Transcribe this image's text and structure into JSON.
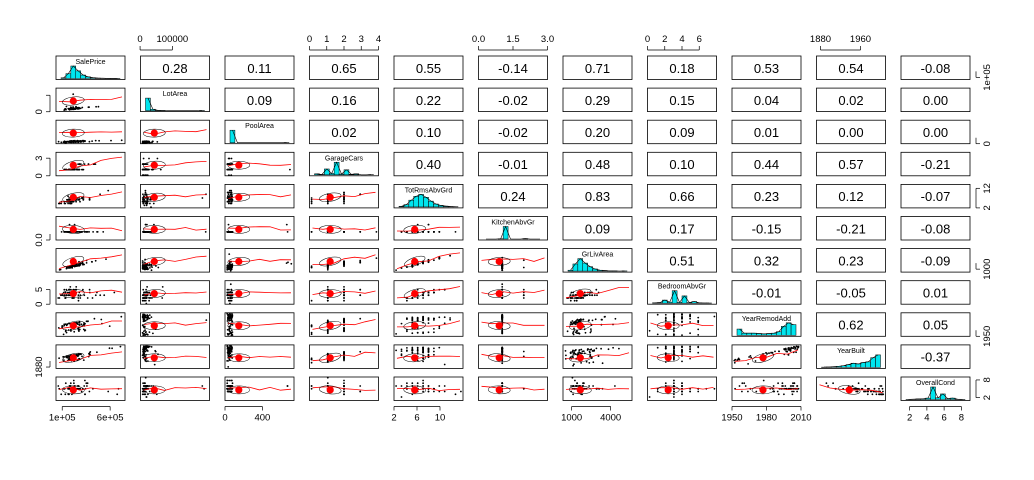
{
  "chart_data": {
    "type": "pairs-panels",
    "title": "",
    "variables": [
      "SalePrice",
      "LotArea",
      "PoolArea",
      "GarageCars",
      "TotRmsAbvGrd",
      "KitchenAbvGr",
      "GrLivArea",
      "BedroomAbvGr",
      "YearRemodAdd",
      "YearBuilt",
      "OverallCond"
    ],
    "correlations": [
      [
        null,
        0.28,
        0.11,
        0.65,
        0.55,
        -0.14,
        0.71,
        0.18,
        0.53,
        0.54,
        -0.08
      ],
      [
        null,
        null,
        0.09,
        0.16,
        0.22,
        -0.02,
        0.29,
        0.15,
        0.04,
        0.02,
        0.0
      ],
      [
        null,
        null,
        null,
        0.02,
        0.1,
        -0.02,
        0.2,
        0.09,
        0.01,
        0.0,
        0.0
      ],
      [
        null,
        null,
        null,
        null,
        0.4,
        -0.01,
        0.48,
        0.1,
        0.44,
        0.57,
        -0.21
      ],
      [
        null,
        null,
        null,
        null,
        null,
        0.24,
        0.83,
        0.66,
        0.23,
        0.12,
        -0.07
      ],
      [
        null,
        null,
        null,
        null,
        null,
        null,
        0.09,
        0.17,
        -0.15,
        -0.21,
        -0.08
      ],
      [
        null,
        null,
        null,
        null,
        null,
        null,
        null,
        0.51,
        0.32,
        0.23,
        -0.09
      ],
      [
        null,
        null,
        null,
        null,
        null,
        null,
        null,
        null,
        -0.01,
        -0.05,
        0.01
      ],
      [
        null,
        null,
        null,
        null,
        null,
        null,
        null,
        null,
        null,
        0.62,
        0.05
      ],
      [
        null,
        null,
        null,
        null,
        null,
        null,
        null,
        null,
        null,
        null,
        -0.37
      ],
      [
        null,
        null,
        null,
        null,
        null,
        null,
        null,
        null,
        null,
        null,
        null
      ]
    ],
    "corr_text": [
      [
        "",
        "0.28",
        "0.11",
        "0.65",
        "0.55",
        "-0.14",
        "0.71",
        "0.18",
        "0.53",
        "0.54",
        "-0.08"
      ],
      [
        "",
        "",
        "0.09",
        "0.16",
        "0.22",
        "-0.02",
        "0.29",
        "0.15",
        "0.04",
        "0.02",
        "0.00"
      ],
      [
        "",
        "",
        "",
        "0.02",
        "0.10",
        "-0.02",
        "0.20",
        "0.09",
        "0.01",
        "0.00",
        "0.00"
      ],
      [
        "",
        "",
        "",
        "",
        "0.40",
        "-0.01",
        "0.48",
        "0.10",
        "0.44",
        "0.57",
        "-0.21"
      ],
      [
        "",
        "",
        "",
        "",
        "",
        "0.24",
        "0.83",
        "0.66",
        "0.23",
        "0.12",
        "-0.07"
      ],
      [
        "",
        "",
        "",
        "",
        "",
        "",
        "0.09",
        "0.17",
        "-0.15",
        "-0.21",
        "-0.08"
      ],
      [
        "",
        "",
        "",
        "",
        "",
        "",
        "",
        "0.51",
        "0.32",
        "0.23",
        "-0.09"
      ],
      [
        "",
        "",
        "",
        "",
        "",
        "",
        "",
        "",
        "-0.01",
        "-0.05",
        "0.01"
      ],
      [
        "",
        "",
        "",
        "",
        "",
        "",
        "",
        "",
        "",
        "0.62",
        "0.05"
      ],
      [
        "",
        "",
        "",
        "",
        "",
        "",
        "",
        "",
        "",
        "",
        "-0.37"
      ],
      [
        "",
        "",
        "",
        "",
        "",
        "",
        "",
        "",
        "",
        "",
        ""
      ]
    ],
    "ranges": [
      [
        35000,
        755000
      ],
      [
        1300,
        215000
      ],
      [
        0,
        738
      ],
      [
        0,
        4
      ],
      [
        2,
        14
      ],
      [
        0,
        3
      ],
      [
        334,
        5642
      ],
      [
        0,
        8
      ],
      [
        1950,
        2010
      ],
      [
        1872,
        2010
      ],
      [
        1,
        9
      ]
    ],
    "top_axis": [
      {
        "col": 1,
        "ticks": [
          0,
          100000
        ],
        "labels": [
          "0",
          "100000"
        ]
      },
      {
        "col": 3,
        "ticks": [
          0,
          1,
          2,
          3,
          4
        ],
        "labels": [
          "0",
          "1",
          "2",
          "3",
          "4"
        ]
      },
      {
        "col": 5,
        "ticks": [
          0,
          1.5,
          3
        ],
        "labels": [
          "0.0",
          "1.5",
          "3.0"
        ]
      },
      {
        "col": 7,
        "ticks": [
          0,
          2,
          4,
          6
        ],
        "labels": [
          "0",
          "2",
          "4",
          "6"
        ]
      },
      {
        "col": 9,
        "ticks": [
          1880,
          1960
        ],
        "labels": [
          "1880",
          "1960"
        ]
      }
    ],
    "bottom_axis": [
      {
        "col": 0,
        "ticks": [
          100000,
          600000
        ],
        "labels": [
          "1e+05",
          "6e+05"
        ]
      },
      {
        "col": 2,
        "ticks": [
          0,
          400
        ],
        "labels": [
          "0",
          "400"
        ]
      },
      {
        "col": 4,
        "ticks": [
          2,
          6,
          10
        ],
        "labels": [
          "2",
          "6",
          "10"
        ]
      },
      {
        "col": 6,
        "ticks": [
          1000,
          4000
        ],
        "labels": [
          "1000",
          "4000"
        ]
      },
      {
        "col": 8,
        "ticks": [
          1950,
          1980,
          2010
        ],
        "labels": [
          "1950",
          "1980",
          "2010"
        ]
      },
      {
        "col": 10,
        "ticks": [
          2,
          4,
          6,
          8
        ],
        "labels": [
          "2",
          "4",
          "6",
          "8"
        ]
      }
    ],
    "left_axis": [
      {
        "row": 1,
        "ticks": [
          0,
          150000
        ],
        "labels": [
          "0",
          ""
        ]
      },
      {
        "row": 3,
        "ticks": [
          0,
          3
        ],
        "labels": [
          "0",
          "3"
        ]
      },
      {
        "row": 5,
        "ticks": [
          0
        ],
        "labels": [
          "0.0"
        ]
      },
      {
        "row": 7,
        "ticks": [
          0,
          5
        ],
        "labels": [
          "0",
          "5"
        ]
      },
      {
        "row": 9,
        "ticks": [
          1880
        ],
        "labels": [
          "1880"
        ]
      }
    ],
    "right_axis": [
      {
        "row": 0,
        "ticks": [
          100000
        ],
        "labels": [
          "1e+05"
        ]
      },
      {
        "row": 2,
        "ticks": [
          0
        ],
        "labels": [
          "0"
        ]
      },
      {
        "row": 4,
        "ticks": [
          2,
          12
        ],
        "labels": [
          "2",
          "12"
        ]
      },
      {
        "row": 6,
        "ticks": [
          1000
        ],
        "labels": [
          "1000"
        ]
      },
      {
        "row": 8,
        "ticks": [
          1950
        ],
        "labels": [
          "1950"
        ]
      },
      {
        "row": 10,
        "ticks": [
          2,
          8
        ],
        "labels": [
          "2",
          "8"
        ]
      }
    ],
    "hist_color": "#00e5ee",
    "smooth_color": "#ff0000",
    "point_color": "#000000"
  }
}
